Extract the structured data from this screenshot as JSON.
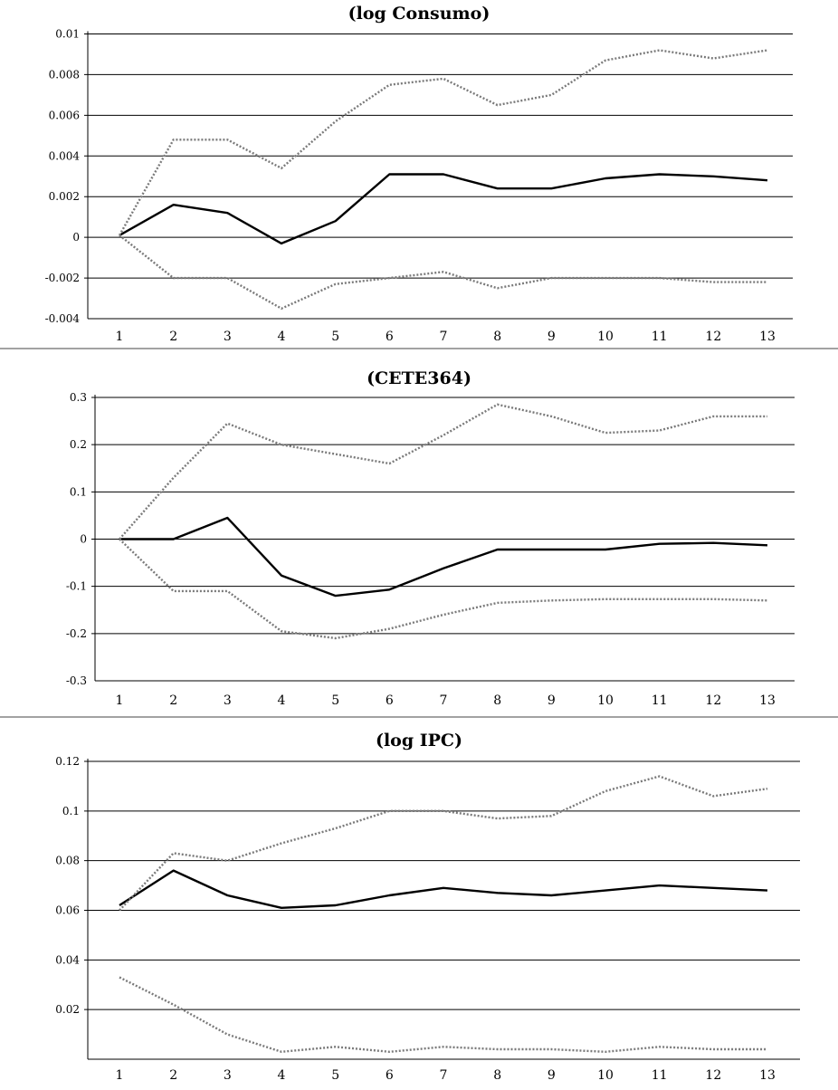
{
  "chart_data": [
    {
      "type": "line",
      "title": "(log Consumo)",
      "categories": [
        "1",
        "2",
        "3",
        "4",
        "5",
        "6",
        "7",
        "8",
        "9",
        "10",
        "11",
        "12",
        "13"
      ],
      "x": [
        1,
        2,
        3,
        4,
        5,
        6,
        7,
        8,
        9,
        10,
        11,
        12,
        13
      ],
      "ylim": [
        -0.004,
        0.01
      ],
      "yticks": [
        -0.004,
        -0.002,
        0,
        0.002,
        0.004,
        0.006,
        0.008,
        0.01
      ],
      "ytick_labels": [
        "-0.004",
        "-0.002",
        "0",
        "0.002",
        "0.004",
        "0.006",
        "0.008",
        "0.01"
      ],
      "grid": true,
      "series": [
        {
          "role": "estimate",
          "values": [
            0.0001,
            0.0016,
            0.0012,
            -0.0003,
            0.0008,
            0.0031,
            0.0031,
            0.0024,
            0.0024,
            0.0029,
            0.0031,
            0.003,
            0.0028
          ]
        },
        {
          "role": "upper",
          "values": [
            0.0001,
            0.0048,
            0.0048,
            0.0034,
            0.0057,
            0.0075,
            0.0078,
            0.0065,
            0.007,
            0.0087,
            0.0092,
            0.0088,
            0.0092
          ]
        },
        {
          "role": "lower",
          "values": [
            0.0001,
            -0.002,
            -0.002,
            -0.0035,
            -0.0023,
            -0.002,
            -0.0017,
            -0.0025,
            -0.002,
            -0.002,
            -0.002,
            -0.0022,
            -0.0022
          ]
        }
      ]
    },
    {
      "type": "line",
      "title": "(CETE364)",
      "categories": [
        "1",
        "2",
        "3",
        "4",
        "5",
        "6",
        "7",
        "8",
        "9",
        "10",
        "11",
        "12",
        "13"
      ],
      "x": [
        1,
        2,
        3,
        4,
        5,
        6,
        7,
        8,
        9,
        10,
        11,
        12,
        13
      ],
      "ylim": [
        -0.3,
        0.3
      ],
      "yticks": [
        -0.3,
        -0.2,
        -0.1,
        0,
        0.1,
        0.2,
        0.3
      ],
      "ytick_labels": [
        "-0.3",
        "-0.2",
        "-0.1",
        "0",
        "0.1",
        "0.2",
        "0.3"
      ],
      "grid": true,
      "series": [
        {
          "role": "estimate",
          "values": [
            0.0,
            0.0,
            0.045,
            -0.077,
            -0.12,
            -0.107,
            -0.062,
            -0.022,
            -0.022,
            -0.022,
            -0.01,
            -0.008,
            -0.013
          ]
        },
        {
          "role": "upper",
          "values": [
            0.0,
            0.13,
            0.245,
            0.2,
            0.18,
            0.16,
            0.22,
            0.285,
            0.26,
            0.225,
            0.23,
            0.26,
            0.26
          ]
        },
        {
          "role": "lower",
          "values": [
            0.0,
            -0.11,
            -0.11,
            -0.195,
            -0.21,
            -0.19,
            -0.16,
            -0.135,
            -0.13,
            -0.127,
            -0.127,
            -0.127,
            -0.13
          ]
        }
      ]
    },
    {
      "type": "line",
      "title": "(log IPC)",
      "categories": [
        "1",
        "2",
        "3",
        "4",
        "5",
        "6",
        "7",
        "8",
        "9",
        "10",
        "11",
        "12",
        "13"
      ],
      "x": [
        1,
        2,
        3,
        4,
        5,
        6,
        7,
        8,
        9,
        10,
        11,
        12,
        13
      ],
      "ylim": [
        0,
        0.12
      ],
      "yticks": [
        0.02,
        0.04,
        0.06,
        0.08,
        0.1,
        0.12
      ],
      "ytick_labels": [
        "0.02",
        "0.04",
        "0.06",
        "0.08",
        "0.1",
        "0.12"
      ],
      "grid": true,
      "series": [
        {
          "role": "estimate",
          "values": [
            0.062,
            0.076,
            0.066,
            0.061,
            0.062,
            0.066,
            0.069,
            0.067,
            0.066,
            0.068,
            0.07,
            0.069,
            0.068
          ]
        },
        {
          "role": "upper",
          "values": [
            0.06,
            0.083,
            0.08,
            0.087,
            0.093,
            0.1,
            0.1,
            0.097,
            0.098,
            0.108,
            0.114,
            0.106,
            0.109
          ]
        },
        {
          "role": "lower",
          "values": [
            0.033,
            0.022,
            0.01,
            0.003,
            0.005,
            0.003,
            0.005,
            0.004,
            0.004,
            0.003,
            0.005,
            0.004,
            0.004
          ]
        }
      ]
    }
  ]
}
